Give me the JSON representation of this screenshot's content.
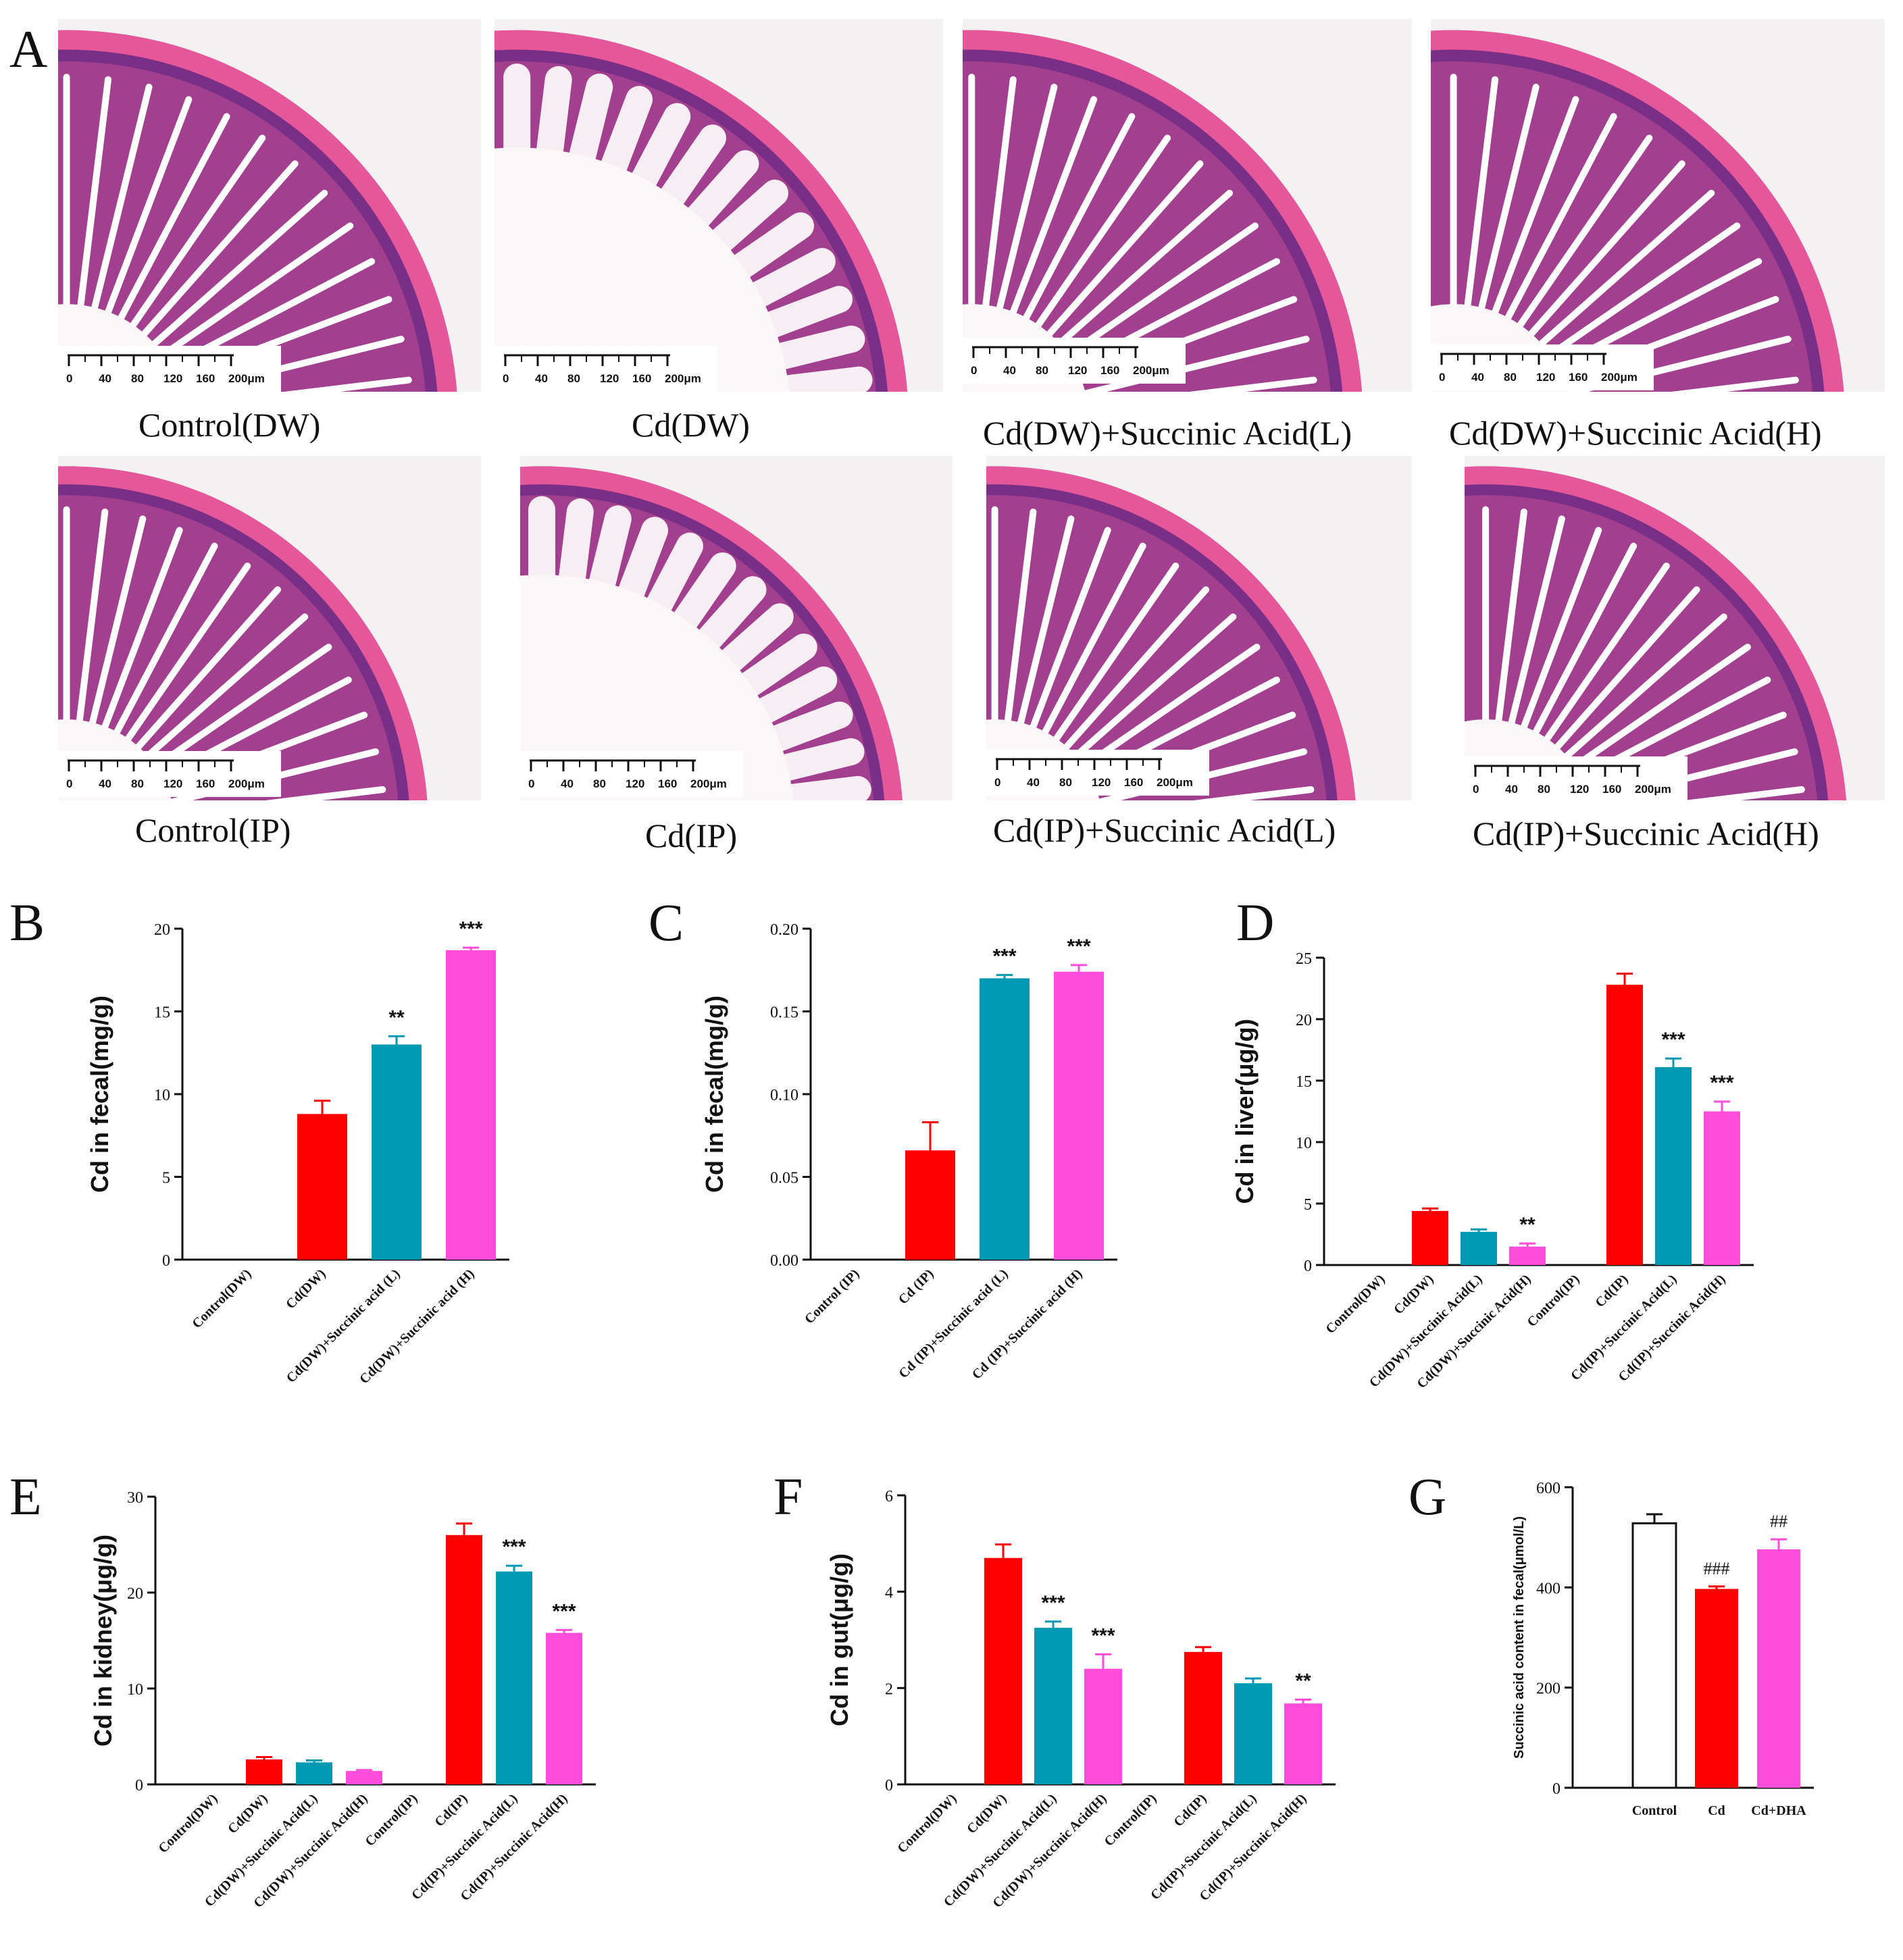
{
  "panel_a": {
    "letter": "A",
    "scale_labels": [
      "0",
      "40",
      "80",
      "120",
      "160",
      "200μm"
    ],
    "images": [
      {
        "caption": "Control(DW)",
        "tissue": "healthy"
      },
      {
        "caption": "Cd(DW)",
        "tissue": "damaged"
      },
      {
        "caption": "Cd(DW)+Succinic Acid(L)",
        "tissue": "healthy"
      },
      {
        "caption": "Cd(DW)+Succinic Acid(H)",
        "tissue": "healthy"
      },
      {
        "caption": "Control(IP)",
        "tissue": "healthy"
      },
      {
        "caption": "Cd(IP)",
        "tissue": "damaged"
      },
      {
        "caption": "Cd(IP)+Succinic Acid(L)",
        "tissue": "healthy"
      },
      {
        "caption": "Cd(IP)+Succinic Acid(H)",
        "tissue": "healthy"
      }
    ]
  },
  "colors": {
    "red": "#ff0000",
    "teal": "#0099b4",
    "magenta": "#ff4ddb",
    "white": "#ffffff",
    "tissue_pink": "#e5579b",
    "tissue_purple": "#7a2f86",
    "background": "#f4f1f3"
  },
  "chart_data": [
    {
      "id": "B",
      "type": "bar",
      "letter": "B",
      "ylabel": "Cd in fecal(mg/g)",
      "ylim": [
        0,
        20
      ],
      "yticks": [
        "0",
        "5",
        "10",
        "15",
        "20"
      ],
      "categories": [
        "Control(DW)",
        "Cd(DW)",
        "Cd(DW)+Succinic acid (L)",
        "Cd(DW)+Succinic acid (H)"
      ],
      "values": [
        0,
        8.8,
        13.0,
        18.7
      ],
      "errors": [
        0,
        0.8,
        0.5,
        0.15
      ],
      "bar_colors": [
        "#ff0000",
        "#ff0000",
        "#0099b4",
        "#ff4ddb"
      ],
      "significance": [
        "",
        "",
        "**",
        "***"
      ]
    },
    {
      "id": "C",
      "type": "bar",
      "letter": "C",
      "ylabel": "Cd in fecal(mg/g)",
      "ylim": [
        0,
        0.2
      ],
      "yticks": [
        "0.00",
        "0.05",
        "0.10",
        "0.15",
        "0.20"
      ],
      "categories": [
        "Control (IP)",
        "Cd (IP)",
        "Cd (IP)+Succinic acid (L)",
        "Cd (IP)+Succinic acid (H)"
      ],
      "values": [
        0,
        0.066,
        0.17,
        0.174
      ],
      "errors": [
        0,
        0.017,
        0.002,
        0.004
      ],
      "bar_colors": [
        "#ff0000",
        "#ff0000",
        "#0099b4",
        "#ff4ddb"
      ],
      "significance": [
        "",
        "",
        "***",
        "***"
      ]
    },
    {
      "id": "D",
      "type": "bar",
      "letter": "D",
      "ylabel": "Cd in liver(μg/g)",
      "ylim": [
        0,
        25
      ],
      "yticks": [
        "0",
        "5",
        "10",
        "15",
        "20",
        "25"
      ],
      "categories": [
        "Control(DW)",
        "Cd(DW)",
        "Cd(DW)+Succinic Acid(L)",
        "Cd(DW)+Succinic Acid(H)",
        "Control(IP)",
        "Cd(IP)",
        "Cd(IP)+Succinic Acid(L)",
        "Cd(IP)+Succinic Acid(H)"
      ],
      "values": [
        0,
        4.4,
        2.7,
        1.5,
        0,
        22.8,
        16.1,
        12.5
      ],
      "errors": [
        0,
        0.2,
        0.2,
        0.25,
        0,
        0.9,
        0.7,
        0.8
      ],
      "bar_colors": [
        "#ff0000",
        "#ff0000",
        "#0099b4",
        "#ff4ddb",
        "#ff0000",
        "#ff0000",
        "#0099b4",
        "#ff4ddb"
      ],
      "significance": [
        "",
        "",
        "",
        "**",
        "",
        "",
        "***",
        "***"
      ]
    },
    {
      "id": "E",
      "type": "bar",
      "letter": "E",
      "ylabel": "Cd in kidney(μg/g)",
      "ylim": [
        0,
        30
      ],
      "yticks": [
        "0",
        "10",
        "20",
        "30"
      ],
      "categories": [
        "Control(DW)",
        "Cd(DW)",
        "Cd(DW)+Succinic Acid(L)",
        "Cd(DW)+Succinic Acid(H)",
        "Control(IP)",
        "Cd(IP)",
        "Cd(IP)+Succinic Acid(L)",
        "Cd(IP)+Succinic Acid(H)"
      ],
      "values": [
        0,
        2.6,
        2.3,
        1.4,
        0,
        26.0,
        22.2,
        15.8
      ],
      "errors": [
        0,
        0.25,
        0.2,
        0.1,
        0,
        1.2,
        0.6,
        0.3
      ],
      "bar_colors": [
        "#ff0000",
        "#ff0000",
        "#0099b4",
        "#ff4ddb",
        "#ff0000",
        "#ff0000",
        "#0099b4",
        "#ff4ddb"
      ],
      "significance": [
        "",
        "",
        "",
        "",
        "",
        "",
        "***",
        "***"
      ]
    },
    {
      "id": "F",
      "type": "bar",
      "letter": "F",
      "ylabel": "Cd in gut(μg/g)",
      "ylim": [
        0,
        6
      ],
      "yticks": [
        "0",
        "2",
        "4",
        "6"
      ],
      "categories": [
        "Control(DW)",
        "Cd(DW)",
        "Cd(DW)+Succinic Acid(L)",
        "Cd(DW)+Succinic Acid(H)",
        "Control(IP)",
        "Cd(IP)",
        "Cd(IP)+Succinic Acid(L)",
        "Cd(IP)+Succinic Acid(H)"
      ],
      "values": [
        0,
        4.7,
        3.25,
        2.4,
        0,
        2.75,
        2.1,
        1.68
      ],
      "errors": [
        0,
        0.28,
        0.13,
        0.3,
        0,
        0.1,
        0.1,
        0.08
      ],
      "bar_colors": [
        "#ff0000",
        "#ff0000",
        "#0099b4",
        "#ff4ddb",
        "#ff0000",
        "#ff0000",
        "#0099b4",
        "#ff4ddb"
      ],
      "significance": [
        "",
        "",
        "***",
        "***",
        "",
        "",
        "",
        "**"
      ]
    },
    {
      "id": "G",
      "type": "bar",
      "letter": "G",
      "ylabel": "Succinic acid content in fecal(μmol/L)",
      "ylim": [
        0,
        600
      ],
      "yticks": [
        "0",
        "200",
        "400",
        "600"
      ],
      "categories": [
        "Control",
        "Cd",
        "Cd+DHA"
      ],
      "values": [
        528,
        397,
        476
      ],
      "errors": [
        18,
        5,
        20
      ],
      "bar_colors": [
        "#ffffff",
        "#ff0000",
        "#ff4ddb"
      ],
      "significance": [
        "",
        "###",
        "##"
      ]
    }
  ]
}
